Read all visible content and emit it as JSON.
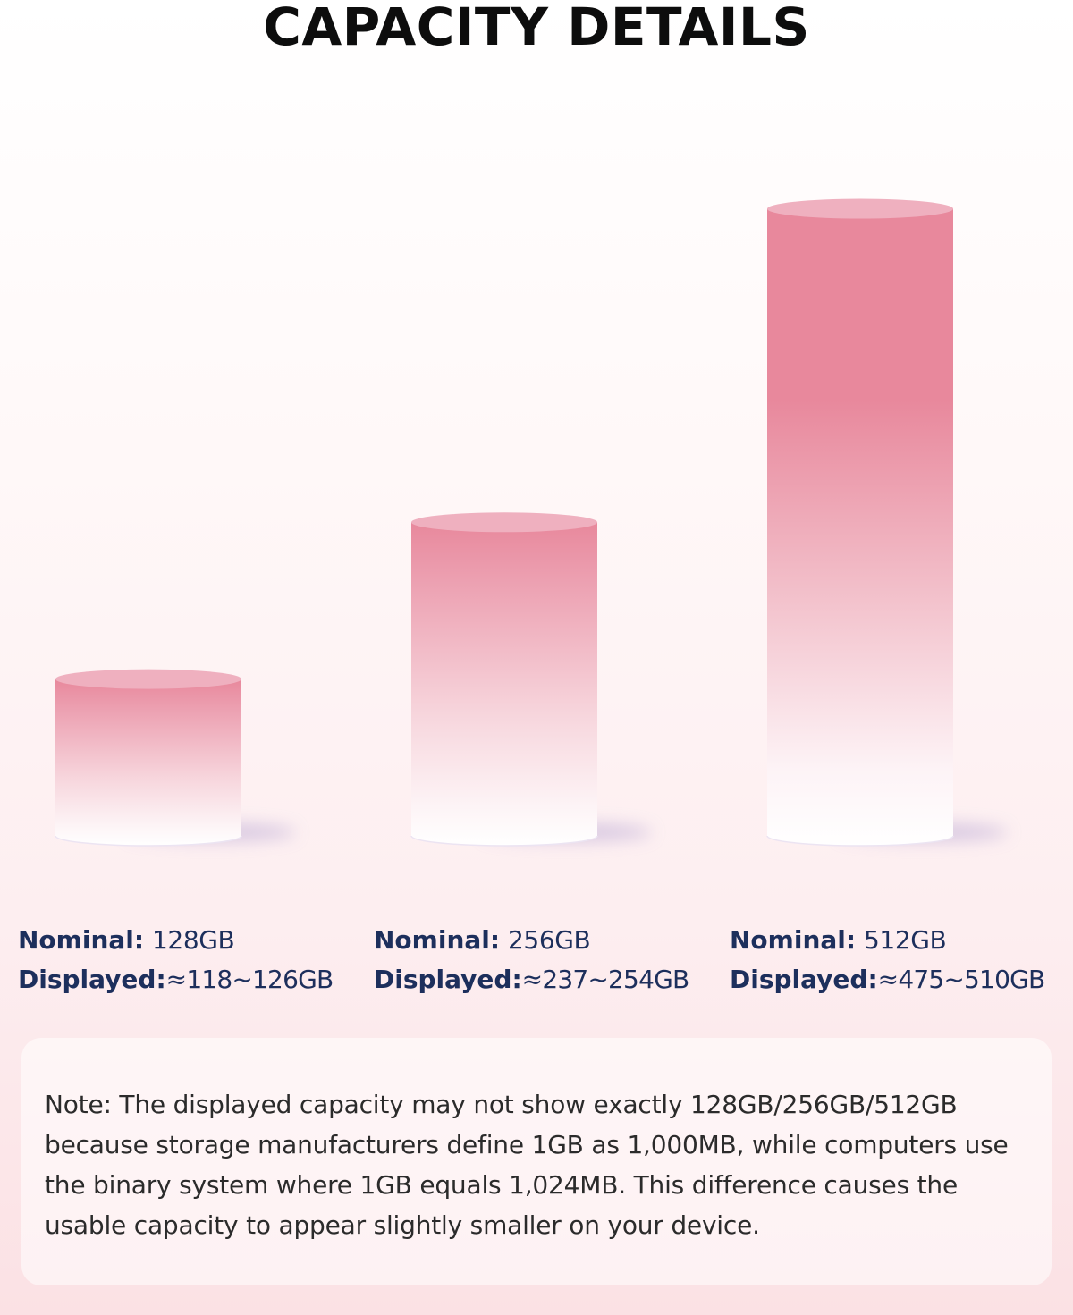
{
  "title": "CAPACITY DETAILS",
  "chart_data": {
    "type": "bar",
    "categories": [
      "128GB",
      "256GB",
      "512GB"
    ],
    "values": [
      128,
      256,
      512
    ],
    "items": [
      {
        "nominal_label": "Nominal:",
        "nominal_value": "128GB",
        "displayed_label": "Displayed:",
        "displayed_value": "≈118~126GB"
      },
      {
        "nominal_label": "Nominal:",
        "nominal_value": "256GB",
        "displayed_label": "Displayed:",
        "displayed_value": "≈237~254GB"
      },
      {
        "nominal_label": "Nominal:",
        "nominal_value": "512GB",
        "displayed_label": "Displayed:",
        "displayed_value": "≈475~510GB"
      }
    ],
    "bar_color": "#e8889c",
    "bar_top_color": "#efb0bf"
  },
  "note": "Note: The displayed capacity may not show exactly 128GB/256GB/512GB because storage manufacturers define 1GB as 1,000MB, while computers use the binary system where 1GB equals 1,024MB. This difference causes the usable capacity to appear slightly smaller on your device."
}
